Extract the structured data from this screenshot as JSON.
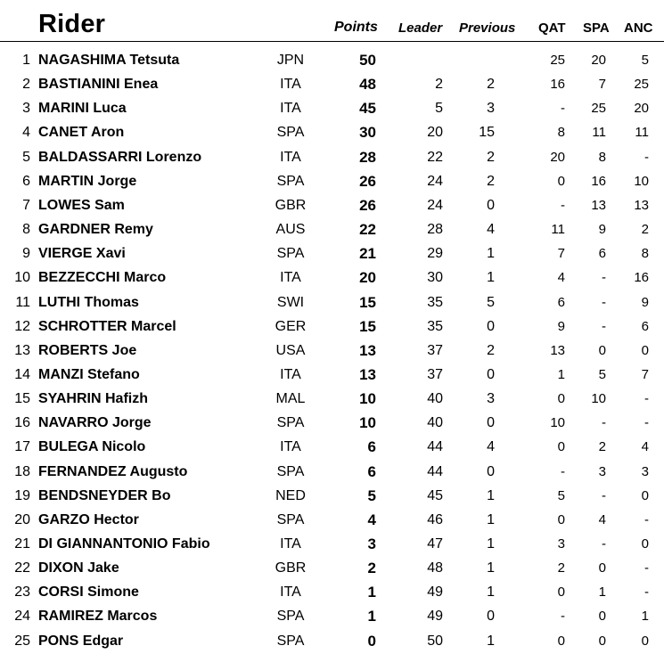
{
  "headers": {
    "rider": "Rider",
    "points": "Points",
    "leader": "Leader",
    "previous": "Previous",
    "qat": "QAT",
    "spa": "SPA",
    "anc": "ANC"
  },
  "rows": [
    {
      "pos": "1",
      "name": "NAGASHIMA Tetsuta",
      "nation": "JPN",
      "points": "50",
      "leader": "",
      "previous": "",
      "qat": "25",
      "spa": "20",
      "anc": "5"
    },
    {
      "pos": "2",
      "name": "BASTIANINI Enea",
      "nation": "ITA",
      "points": "48",
      "leader": "2",
      "previous": "2",
      "qat": "16",
      "spa": "7",
      "anc": "25"
    },
    {
      "pos": "3",
      "name": "MARINI Luca",
      "nation": "ITA",
      "points": "45",
      "leader": "5",
      "previous": "3",
      "qat": "-",
      "spa": "25",
      "anc": "20"
    },
    {
      "pos": "4",
      "name": "CANET Aron",
      "nation": "SPA",
      "points": "30",
      "leader": "20",
      "previous": "15",
      "qat": "8",
      "spa": "11",
      "anc": "11"
    },
    {
      "pos": "5",
      "name": "BALDASSARRI Lorenzo",
      "nation": "ITA",
      "points": "28",
      "leader": "22",
      "previous": "2",
      "qat": "20",
      "spa": "8",
      "anc": "-"
    },
    {
      "pos": "6",
      "name": "MARTIN Jorge",
      "nation": "SPA",
      "points": "26",
      "leader": "24",
      "previous": "2",
      "qat": "0",
      "spa": "16",
      "anc": "10"
    },
    {
      "pos": "7",
      "name": "LOWES Sam",
      "nation": "GBR",
      "points": "26",
      "leader": "24",
      "previous": "0",
      "qat": "-",
      "spa": "13",
      "anc": "13"
    },
    {
      "pos": "8",
      "name": "GARDNER Remy",
      "nation": "AUS",
      "points": "22",
      "leader": "28",
      "previous": "4",
      "qat": "11",
      "spa": "9",
      "anc": "2"
    },
    {
      "pos": "9",
      "name": "VIERGE Xavi",
      "nation": "SPA",
      "points": "21",
      "leader": "29",
      "previous": "1",
      "qat": "7",
      "spa": "6",
      "anc": "8"
    },
    {
      "pos": "10",
      "name": "BEZZECCHI Marco",
      "nation": "ITA",
      "points": "20",
      "leader": "30",
      "previous": "1",
      "qat": "4",
      "spa": "-",
      "anc": "16"
    },
    {
      "pos": "11",
      "name": "LUTHI Thomas",
      "nation": "SWI",
      "points": "15",
      "leader": "35",
      "previous": "5",
      "qat": "6",
      "spa": "-",
      "anc": "9"
    },
    {
      "pos": "12",
      "name": "SCHROTTER Marcel",
      "nation": "GER",
      "points": "15",
      "leader": "35",
      "previous": "0",
      "qat": "9",
      "spa": "-",
      "anc": "6"
    },
    {
      "pos": "13",
      "name": "ROBERTS Joe",
      "nation": "USA",
      "points": "13",
      "leader": "37",
      "previous": "2",
      "qat": "13",
      "spa": "0",
      "anc": "0"
    },
    {
      "pos": "14",
      "name": "MANZI Stefano",
      "nation": "ITA",
      "points": "13",
      "leader": "37",
      "previous": "0",
      "qat": "1",
      "spa": "5",
      "anc": "7"
    },
    {
      "pos": "15",
      "name": "SYAHRIN Hafizh",
      "nation": "MAL",
      "points": "10",
      "leader": "40",
      "previous": "3",
      "qat": "0",
      "spa": "10",
      "anc": "-"
    },
    {
      "pos": "16",
      "name": "NAVARRO Jorge",
      "nation": "SPA",
      "points": "10",
      "leader": "40",
      "previous": "0",
      "qat": "10",
      "spa": "-",
      "anc": "-"
    },
    {
      "pos": "17",
      "name": "BULEGA Nicolo",
      "nation": "ITA",
      "points": "6",
      "leader": "44",
      "previous": "4",
      "qat": "0",
      "spa": "2",
      "anc": "4"
    },
    {
      "pos": "18",
      "name": "FERNANDEZ Augusto",
      "nation": "SPA",
      "points": "6",
      "leader": "44",
      "previous": "0",
      "qat": "-",
      "spa": "3",
      "anc": "3"
    },
    {
      "pos": "19",
      "name": "BENDSNEYDER Bo",
      "nation": "NED",
      "points": "5",
      "leader": "45",
      "previous": "1",
      "qat": "5",
      "spa": "-",
      "anc": "0"
    },
    {
      "pos": "20",
      "name": "GARZO Hector",
      "nation": "SPA",
      "points": "4",
      "leader": "46",
      "previous": "1",
      "qat": "0",
      "spa": "4",
      "anc": "-"
    },
    {
      "pos": "21",
      "name": "DI GIANNANTONIO Fabio",
      "nation": "ITA",
      "points": "3",
      "leader": "47",
      "previous": "1",
      "qat": "3",
      "spa": "-",
      "anc": "0"
    },
    {
      "pos": "22",
      "name": "DIXON Jake",
      "nation": "GBR",
      "points": "2",
      "leader": "48",
      "previous": "1",
      "qat": "2",
      "spa": "0",
      "anc": "-"
    },
    {
      "pos": "23",
      "name": "CORSI Simone",
      "nation": "ITA",
      "points": "1",
      "leader": "49",
      "previous": "1",
      "qat": "0",
      "spa": "1",
      "anc": "-"
    },
    {
      "pos": "24",
      "name": "RAMIREZ Marcos",
      "nation": "SPA",
      "points": "1",
      "leader": "49",
      "previous": "0",
      "qat": "-",
      "spa": "0",
      "anc": "1"
    },
    {
      "pos": "25",
      "name": "PONS Edgar",
      "nation": "SPA",
      "points": "0",
      "leader": "50",
      "previous": "1",
      "qat": "0",
      "spa": "0",
      "anc": "0"
    }
  ]
}
